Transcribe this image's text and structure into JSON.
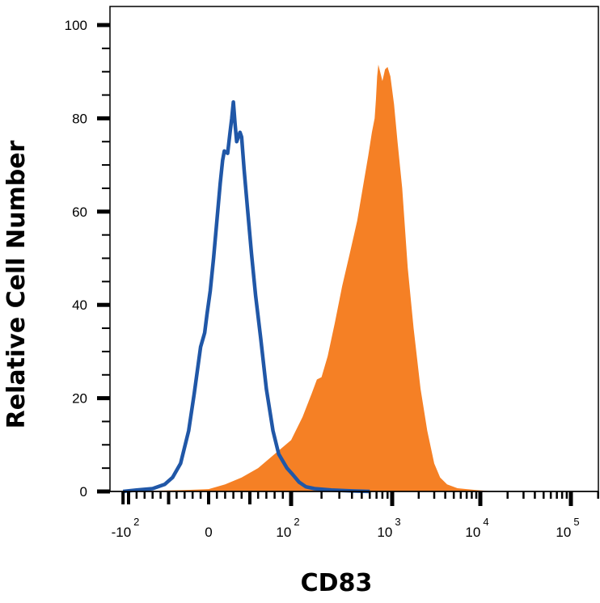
{
  "chart_data": {
    "type": "area",
    "title": "",
    "xlabel": "CD83",
    "ylabel": "Relative Cell Number",
    "x_scale": "logicle",
    "ylim": [
      0,
      100
    ],
    "yticks": [
      0,
      20,
      40,
      60,
      80,
      100
    ],
    "xticks": [
      {
        "value": -100,
        "base": "-10",
        "exp": "2"
      },
      {
        "value": 0,
        "base": "0",
        "exp": ""
      },
      {
        "value": 100,
        "base": "10",
        "exp": "2"
      },
      {
        "value": 1000,
        "base": "10",
        "exp": "3"
      },
      {
        "value": 10000,
        "base": "10",
        "exp": "4"
      },
      {
        "value": 100000,
        "base": "10",
        "exp": "5"
      }
    ],
    "series": [
      {
        "style": "filled",
        "color": "#f58025",
        "points": [
          [
            -130,
            0
          ],
          [
            -30,
            0.3
          ],
          [
            0,
            0.5
          ],
          [
            20,
            1.5
          ],
          [
            40,
            3
          ],
          [
            60,
            5
          ],
          [
            80,
            8
          ],
          [
            100,
            11
          ],
          [
            130,
            16
          ],
          [
            160,
            21
          ],
          [
            180,
            24
          ],
          [
            200,
            24.5
          ],
          [
            230,
            29
          ],
          [
            270,
            36
          ],
          [
            320,
            44
          ],
          [
            380,
            51
          ],
          [
            450,
            58
          ],
          [
            520,
            66
          ],
          [
            580,
            72
          ],
          [
            630,
            77
          ],
          [
            670,
            80
          ],
          [
            690,
            84
          ],
          [
            710,
            89
          ],
          [
            730,
            91.5
          ],
          [
            760,
            90
          ],
          [
            800,
            88
          ],
          [
            850,
            90.5
          ],
          [
            900,
            91
          ],
          [
            960,
            89
          ],
          [
            1050,
            83
          ],
          [
            1150,
            75
          ],
          [
            1300,
            65
          ],
          [
            1500,
            48
          ],
          [
            1750,
            35
          ],
          [
            2100,
            22
          ],
          [
            2500,
            13
          ],
          [
            3000,
            6
          ],
          [
            3500,
            3
          ],
          [
            4200,
            1.5
          ],
          [
            5500,
            0.7
          ],
          [
            7000,
            0.5
          ],
          [
            9000,
            0.3
          ],
          [
            12000,
            0.1
          ],
          [
            15000,
            0
          ]
        ]
      },
      {
        "style": "line",
        "color": "#2057a7",
        "points": [
          [
            -130,
            0
          ],
          [
            -90,
            0.3
          ],
          [
            -70,
            0.6
          ],
          [
            -55,
            1.5
          ],
          [
            -45,
            3
          ],
          [
            -35,
            6
          ],
          [
            -25,
            13
          ],
          [
            -18,
            21
          ],
          [
            -10,
            31
          ],
          [
            -5,
            34
          ],
          [
            -2,
            38
          ],
          [
            2,
            43
          ],
          [
            6,
            50
          ],
          [
            10,
            58
          ],
          [
            14,
            66
          ],
          [
            17,
            71
          ],
          [
            19,
            73
          ],
          [
            23,
            72.5
          ],
          [
            26,
            77
          ],
          [
            28,
            80
          ],
          [
            30,
            83.5
          ],
          [
            32,
            79
          ],
          [
            34,
            75
          ],
          [
            36,
            76
          ],
          [
            38,
            77
          ],
          [
            40,
            76
          ],
          [
            43,
            69
          ],
          [
            47,
            61
          ],
          [
            52,
            51
          ],
          [
            57,
            42
          ],
          [
            63,
            33
          ],
          [
            70,
            22
          ],
          [
            78,
            13
          ],
          [
            85,
            8
          ],
          [
            95,
            5
          ],
          [
            105,
            3.5
          ],
          [
            120,
            2
          ],
          [
            140,
            1
          ],
          [
            170,
            0.6
          ],
          [
            250,
            0.3
          ],
          [
            400,
            0.1
          ],
          [
            600,
            0
          ]
        ]
      }
    ]
  }
}
